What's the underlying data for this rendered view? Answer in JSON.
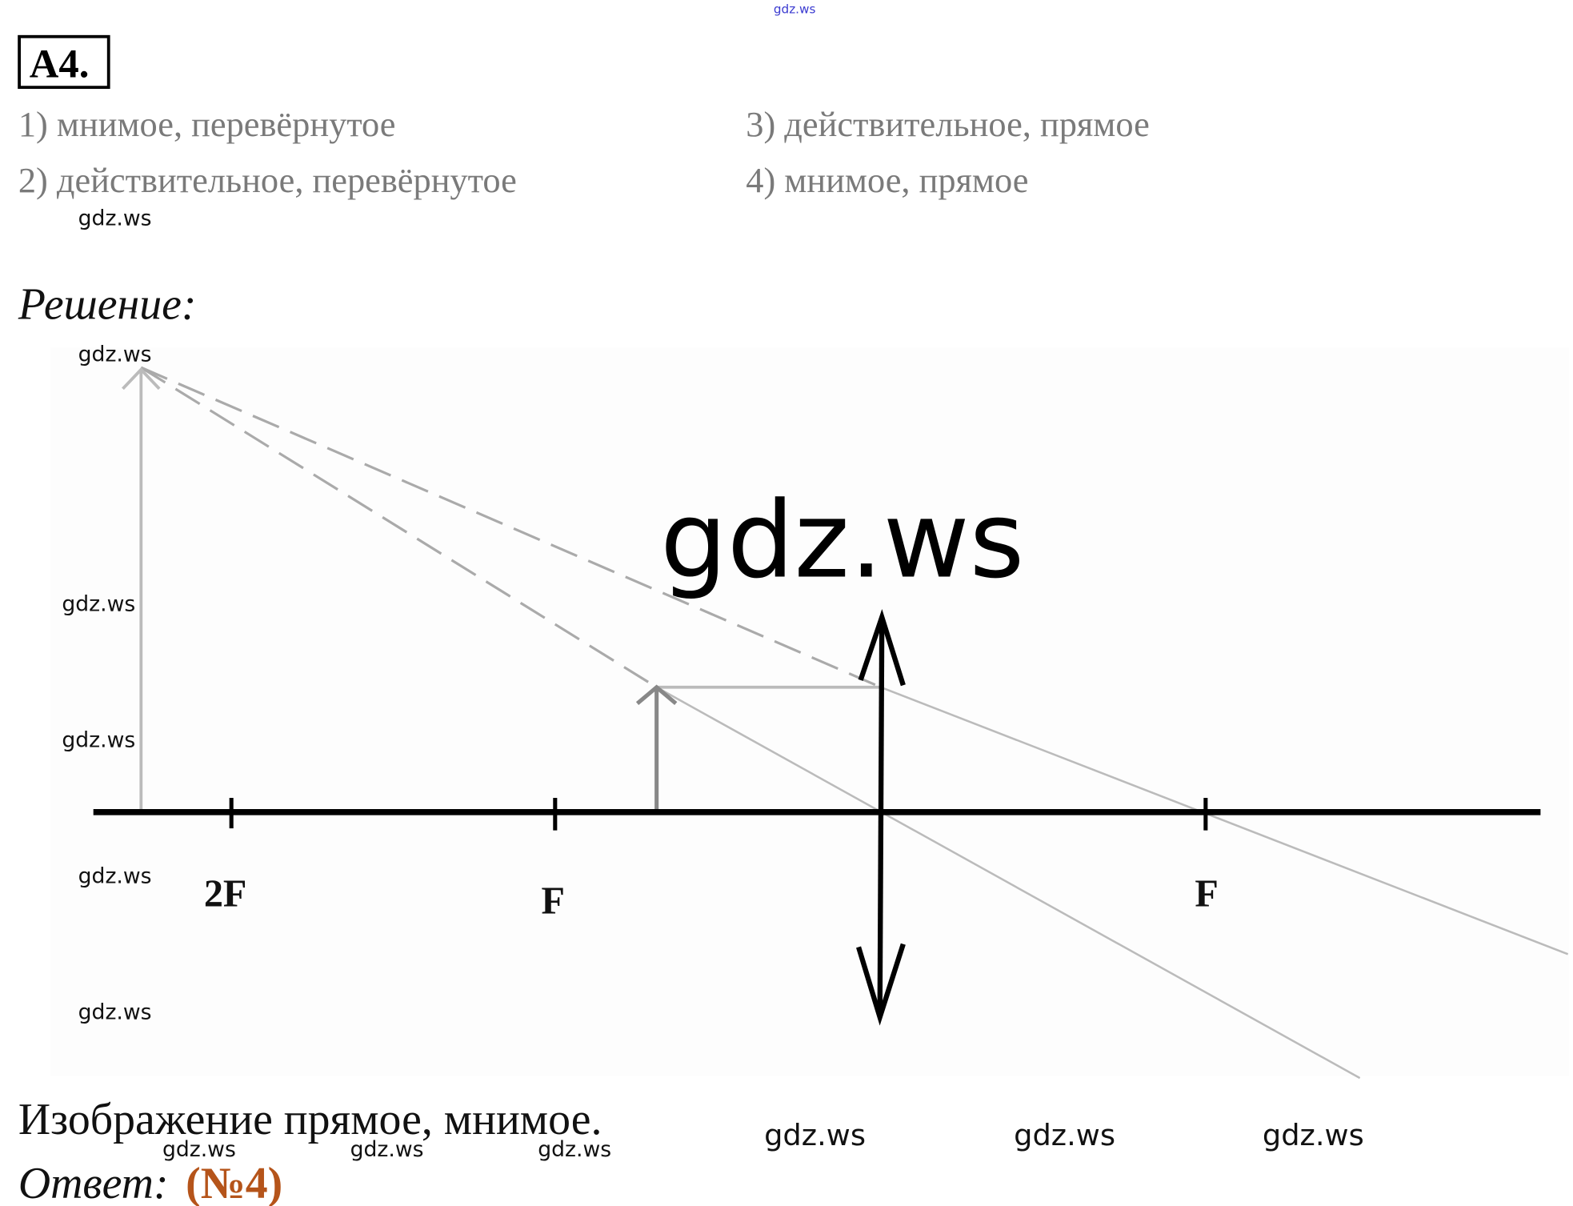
{
  "header": {
    "watermark_top": "gdz.ws",
    "task_number": "A4."
  },
  "options": [
    {
      "label": "1) мнимое, перевёрнутое"
    },
    {
      "label": "2) действительное, перевёрнутое"
    },
    {
      "label": "3) действительное, прямое"
    },
    {
      "label": "4) мнимое, прямое"
    }
  ],
  "solution": {
    "heading": "Решение:",
    "diagram": {
      "labels": {
        "two_f": "2F",
        "f_left": "F",
        "f_right": "F"
      },
      "big_watermark": "gdz.ws"
    },
    "conclusion": "Изображение прямое, мнимое.",
    "answer_label": "Ответ:",
    "answer_value": "(№4)",
    "answer_color": "#b5541a"
  },
  "watermarks": [
    "gdz.ws",
    "gdz.ws",
    "gdz.ws",
    "gdz.ws",
    "gdz.ws",
    "gdz.ws",
    "gdz.ws",
    "gdz.ws",
    "gdz.ws",
    "gdz.ws",
    "gdz.ws",
    "gdz.ws"
  ]
}
